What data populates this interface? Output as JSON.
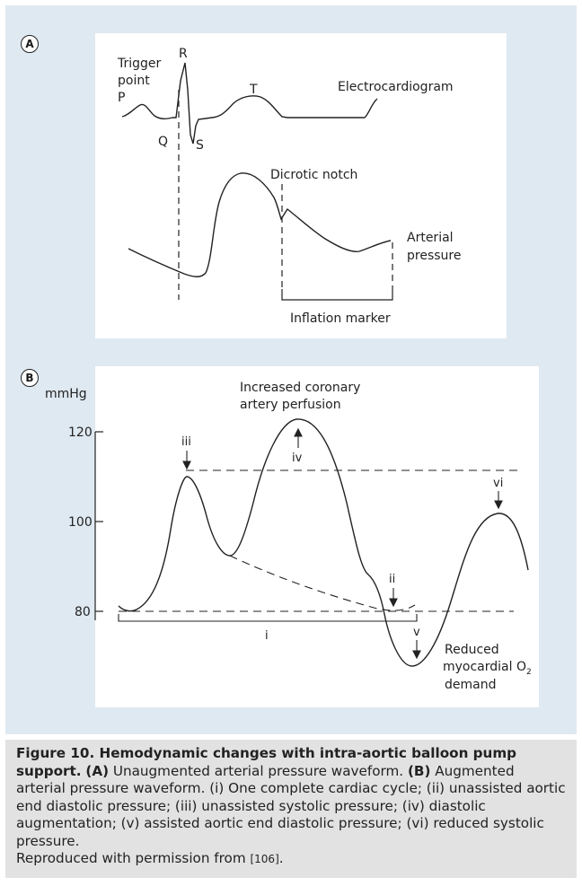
{
  "panel_a": {
    "badge": "A",
    "trigger_line1": "Trigger",
    "trigger_line2": "point",
    "p_wave": "P",
    "q_wave": "Q",
    "r_wave": "R",
    "s_wave": "S",
    "t_wave": "T",
    "ecg_label": "Electrocardiogram",
    "dicrotic_label": "Dicrotic notch",
    "arterial_line1": "Arterial",
    "arterial_line2": "pressure",
    "inflation_label": "Inflation marker"
  },
  "panel_b": {
    "badge": "B",
    "unit_label": "mmHg",
    "y_ticks": [
      "120",
      "100",
      "80"
    ],
    "perfusion_line1": "Increased coronary",
    "perfusion_line2": "artery perfusion",
    "marker_i": "i",
    "marker_ii": "ii",
    "marker_iii": "iii",
    "marker_iv": "iv",
    "marker_v": "v",
    "marker_vi": "vi",
    "reduced_line1": "Reduced",
    "reduced_line2": "myocardial O",
    "reduced_sub": "2",
    "reduced_line3": "demand"
  },
  "caption": {
    "title": "Figure 10. Hemodynamic changes with intra-aortic balloon pump support.",
    "a_label": "(A)",
    "a_text": "Unaugmented arterial pressure waveform.",
    "b_label": "(B)",
    "b_text": "Augmented arterial pressure waveform. (i) One complete cardiac cycle; (ii) unassisted aortic end diastolic pressure; (iii) unassisted systolic pressure; (iv) diastolic augmentation; (v) assisted aortic end diastolic pressure; (vi) reduced systolic pressure.",
    "reproduced_text": "Reproduced with permission from",
    "ref": "[106]",
    "period": "."
  }
}
